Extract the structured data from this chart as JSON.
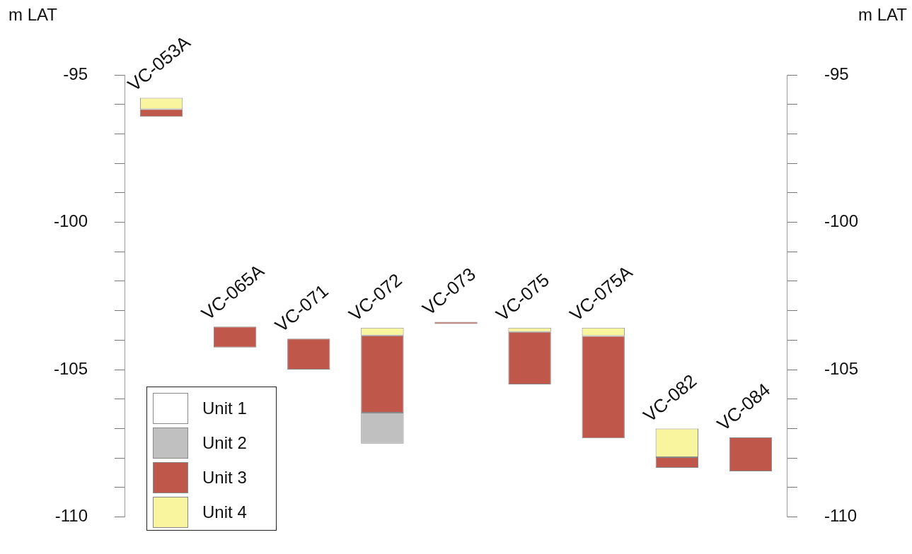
{
  "chart_data": {
    "type": "bar",
    "ylabel": "m LAT",
    "y2label": "m LAT",
    "categories": [
      "VC-053A",
      "VC-065A",
      "VC-071",
      "VC-072",
      "VC-073",
      "VC-075",
      "VC-075A",
      "VC-082",
      "VC-084"
    ],
    "series": [
      {
        "name": "Unit 1",
        "color": "#ffffff",
        "values": [
          null,
          null,
          null,
          null,
          null,
          null,
          null,
          null,
          null
        ],
        "base": [
          null,
          null,
          null,
          null,
          null,
          null,
          null,
          null,
          null
        ]
      },
      {
        "name": "Unit 2",
        "color": "#c0c0c0",
        "values": [
          null,
          null,
          null,
          1.05,
          null,
          null,
          null,
          null,
          null
        ],
        "base": [
          null,
          null,
          null,
          -107.51,
          null,
          null,
          null,
          null,
          null
        ]
      },
      {
        "name": "Unit 3",
        "color": "#c0574b",
        "values": [
          0.26,
          0.71,
          1.05,
          2.62,
          0.07,
          1.78,
          3.47,
          0.36,
          1.15
        ],
        "base": [
          -96.42,
          -104.25,
          -105.0,
          -106.46,
          -103.45,
          -105.5,
          -107.33,
          -108.33,
          -108.45
        ]
      },
      {
        "name": "Unit 4",
        "color": "#f9f59e",
        "values": [
          0.38,
          null,
          null,
          0.26,
          null,
          0.14,
          0.28,
          0.97,
          null
        ],
        "base": [
          -96.16,
          null,
          null,
          -103.84,
          null,
          -103.72,
          -103.86,
          -107.97,
          null
        ]
      }
    ],
    "ylim": [
      -110,
      -95
    ],
    "yticks": [
      -110,
      {
        "value": -109,
        "label": null
      },
      {
        "value": -108,
        "label": null
      },
      {
        "value": -107,
        "label": null
      },
      {
        "value": -106,
        "label": null
      },
      -105,
      {
        "value": -104,
        "label": null
      },
      {
        "value": -103,
        "label": null
      },
      {
        "value": -102,
        "label": null
      },
      {
        "value": -101,
        "label": null
      },
      -100,
      {
        "value": -99,
        "label": null
      },
      {
        "value": -98,
        "label": null
      },
      {
        "value": -97,
        "label": null
      },
      {
        "value": -96,
        "label": null
      },
      -95
    ],
    "y2lim": [
      -110,
      -95
    ],
    "y2ticks": [
      -110,
      {
        "value": -109,
        "label": null
      },
      {
        "value": -108,
        "label": null
      },
      {
        "value": -107,
        "label": null
      },
      {
        "value": -106,
        "label": null
      },
      -105,
      {
        "value": -104,
        "label": null
      },
      {
        "value": -103,
        "label": null
      },
      {
        "value": -102,
        "label": null
      },
      {
        "value": -101,
        "label": null
      },
      -100,
      {
        "value": -99,
        "label": null
      },
      {
        "value": -98,
        "label": null
      },
      {
        "value": -97,
        "label": null
      },
      {
        "value": -96,
        "label": null
      },
      -95
    ],
    "grid": false,
    "legend": "bottom left"
  }
}
